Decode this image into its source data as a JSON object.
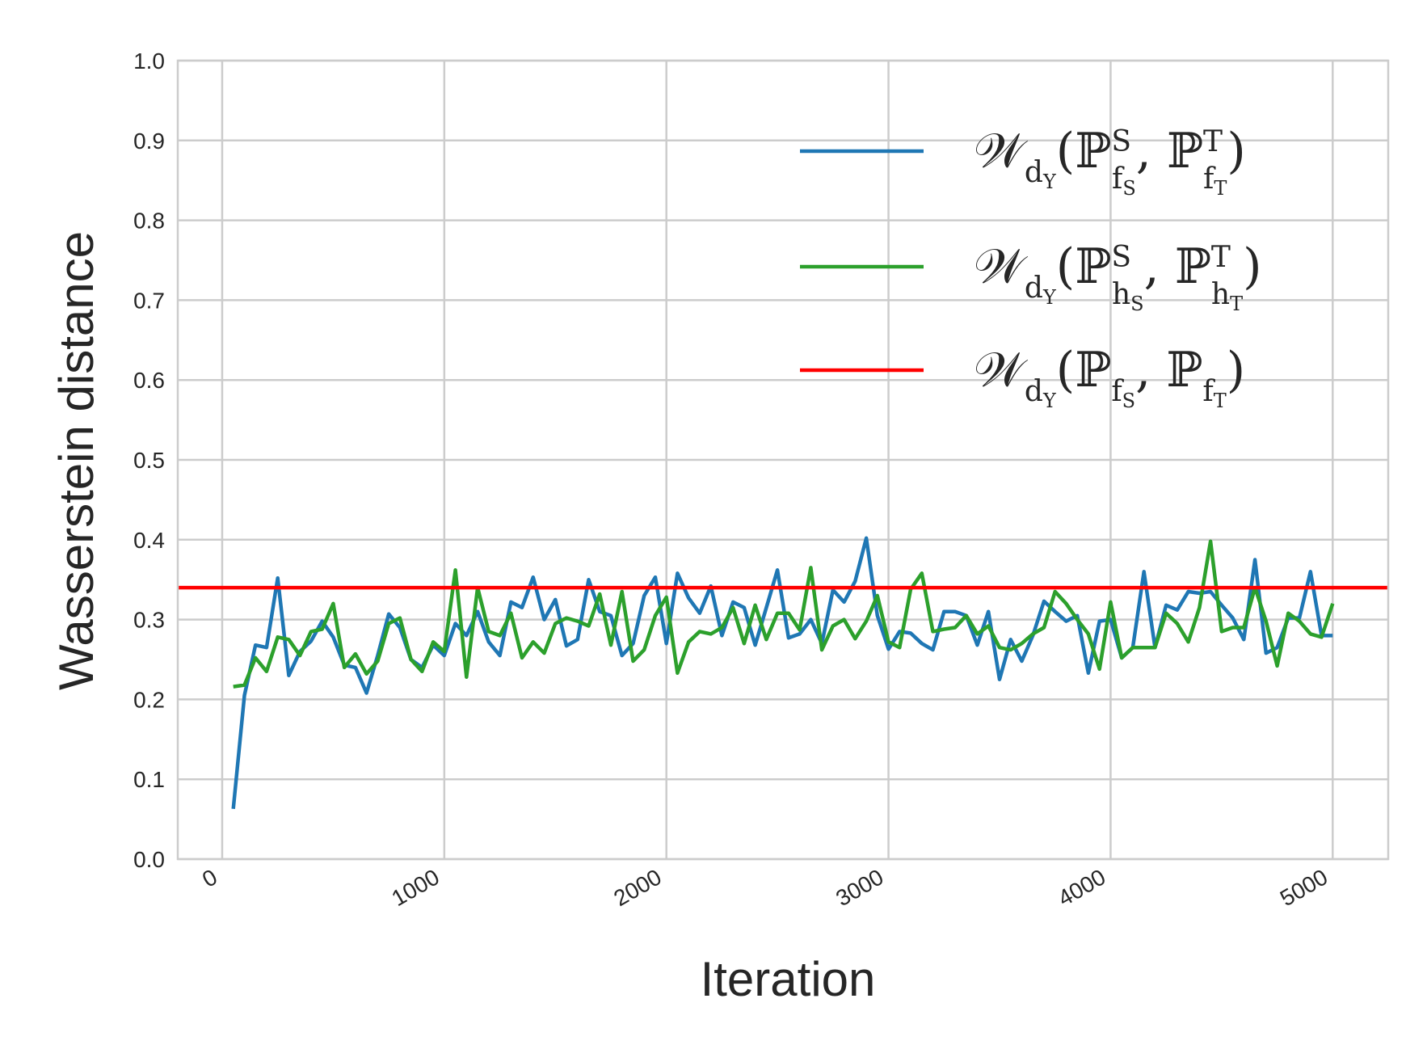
{
  "chart_data": {
    "type": "line",
    "xlabel": "Iteration",
    "ylabel": "Wasserstein distance",
    "xlim": [
      -200,
      5250
    ],
    "ylim": [
      0.0,
      1.0
    ],
    "xticks": [
      "0",
      "1000",
      "2000",
      "3000",
      "4000",
      "5000"
    ],
    "yticks": [
      "0.0",
      "0.1",
      "0.2",
      "0.3",
      "0.4",
      "0.5",
      "0.6",
      "0.7",
      "0.8",
      "0.9",
      "1.0"
    ],
    "grid": true,
    "legend_position": "top-right",
    "colors": {
      "blue": "#1f77b4",
      "green": "#2ca02c",
      "red": "#ff0000",
      "grid": "#cccccc",
      "frame": "#cccccc"
    },
    "x": [
      50,
      100,
      150,
      200,
      250,
      300,
      350,
      400,
      450,
      500,
      550,
      600,
      650,
      700,
      750,
      800,
      850,
      900,
      950,
      1000,
      1050,
      1100,
      1150,
      1200,
      1250,
      1300,
      1350,
      1400,
      1450,
      1500,
      1550,
      1600,
      1650,
      1700,
      1750,
      1800,
      1850,
      1900,
      1950,
      2000,
      2050,
      2100,
      2150,
      2200,
      2250,
      2300,
      2350,
      2400,
      2450,
      2500,
      2550,
      2600,
      2650,
      2700,
      2750,
      2800,
      2850,
      2900,
      2950,
      3000,
      3050,
      3100,
      3150,
      3200,
      3250,
      3300,
      3350,
      3400,
      3450,
      3500,
      3550,
      3600,
      3650,
      3700,
      3750,
      3800,
      3850,
      3900,
      3950,
      4000,
      4050,
      4100,
      4150,
      4200,
      4250,
      4300,
      4350,
      4400,
      4450,
      4500,
      4550,
      4600,
      4650,
      4700,
      4750,
      4800,
      4850,
      4900,
      4950,
      5000
    ],
    "series": [
      {
        "name": "𝒲_{d_Y}(ℙ^S_{f_S}, ℙ^T_{f_T})",
        "color": "#1f77b4",
        "values": [
          0.063,
          0.205,
          0.268,
          0.265,
          0.352,
          0.23,
          0.26,
          0.273,
          0.298,
          0.278,
          0.243,
          0.24,
          0.208,
          0.255,
          0.307,
          0.29,
          0.25,
          0.24,
          0.268,
          0.255,
          0.295,
          0.28,
          0.31,
          0.272,
          0.255,
          0.322,
          0.315,
          0.353,
          0.3,
          0.325,
          0.267,
          0.275,
          0.35,
          0.31,
          0.305,
          0.255,
          0.27,
          0.33,
          0.353,
          0.27,
          0.358,
          0.327,
          0.308,
          0.342,
          0.28,
          0.322,
          0.315,
          0.268,
          0.315,
          0.362,
          0.277,
          0.282,
          0.3,
          0.27,
          0.337,
          0.322,
          0.348,
          0.402,
          0.305,
          0.263,
          0.285,
          0.283,
          0.27,
          0.262,
          0.31,
          0.31,
          0.305,
          0.268,
          0.31,
          0.225,
          0.275,
          0.248,
          0.28,
          0.323,
          0.31,
          0.298,
          0.305,
          0.233,
          0.298,
          0.3,
          0.252,
          0.265,
          0.36,
          0.265,
          0.318,
          0.312,
          0.335,
          0.333,
          0.335,
          0.318,
          0.302,
          0.275,
          0.375,
          0.258,
          0.265,
          0.302,
          0.302,
          0.36,
          0.28,
          0.28
        ]
      },
      {
        "name": "𝒲_{d_Y}(ℙ^S_{h_S}, ℙ^T_{h_T})",
        "color": "#2ca02c",
        "values": [
          0.216,
          0.218,
          0.252,
          0.235,
          0.278,
          0.275,
          0.255,
          0.285,
          0.288,
          0.32,
          0.24,
          0.257,
          0.232,
          0.248,
          0.295,
          0.302,
          0.25,
          0.235,
          0.272,
          0.26,
          0.362,
          0.228,
          0.34,
          0.285,
          0.28,
          0.308,
          0.252,
          0.272,
          0.258,
          0.295,
          0.302,
          0.298,
          0.292,
          0.332,
          0.268,
          0.335,
          0.248,
          0.262,
          0.305,
          0.328,
          0.233,
          0.272,
          0.285,
          0.282,
          0.29,
          0.315,
          0.27,
          0.318,
          0.275,
          0.308,
          0.308,
          0.287,
          0.365,
          0.262,
          0.292,
          0.3,
          0.276,
          0.298,
          0.33,
          0.272,
          0.265,
          0.338,
          0.358,
          0.285,
          0.288,
          0.29,
          0.305,
          0.282,
          0.292,
          0.265,
          0.262,
          0.27,
          0.282,
          0.29,
          0.335,
          0.32,
          0.3,
          0.282,
          0.238,
          0.322,
          0.252,
          0.265,
          0.265,
          0.265,
          0.308,
          0.295,
          0.272,
          0.315,
          0.398,
          0.285,
          0.29,
          0.29,
          0.34,
          0.298,
          0.242,
          0.308,
          0.298,
          0.282,
          0.278,
          0.32
        ]
      },
      {
        "name": "𝒲_{d_Y}(ℙ_{f_S}, ℙ_{f_T})",
        "color": "#ff0000",
        "constant": 0.34
      }
    ]
  }
}
